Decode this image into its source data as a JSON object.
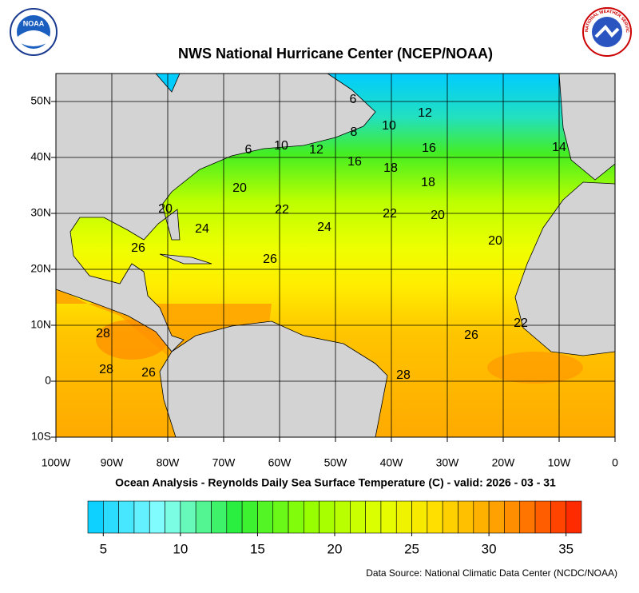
{
  "header": {
    "title": "NWS National Hurricane Center (NCEP/NOAA)",
    "noaa_logo": "NOAA",
    "nws_logo": "NATIONAL WEATHER SERVICE"
  },
  "map": {
    "lon_labels": [
      "100W",
      "90W",
      "80W",
      "70W",
      "60W",
      "50W",
      "40W",
      "30W",
      "20W",
      "10W",
      "0"
    ],
    "lat_labels": [
      "50N",
      "40N",
      "30N",
      "20N",
      "10N",
      "0",
      "10S"
    ],
    "contour_labels": [
      6,
      12,
      8,
      10,
      16,
      14,
      6,
      10,
      12,
      16,
      18,
      18,
      20,
      20,
      22,
      22,
      24,
      24,
      20,
      26,
      26,
      20,
      28,
      26,
      22,
      28,
      26,
      28
    ]
  },
  "subtitle": "Ocean Analysis - Reynolds Daily Sea Surface Temperature (C) - valid: 2026 - 03 - 31",
  "colorbar": {
    "lim": [
      4,
      36
    ],
    "ticks": [
      5,
      10,
      15,
      20,
      25,
      30,
      35
    ]
  },
  "source": "Data Source: National Climatic Data Center (NCDC/NOAA)"
}
